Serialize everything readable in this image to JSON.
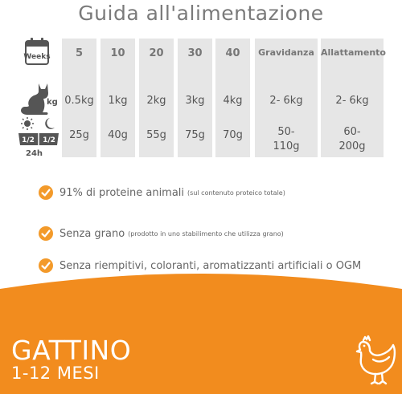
{
  "title": "Guida all'alimentazione",
  "icons": {
    "calendar_label": "Weeks",
    "weight_unit": "kg",
    "portion_half_1": "1/2",
    "portion_half_2": "1/2",
    "portion_period": "24h",
    "calendar_icon": "calendar-icon",
    "cat_icon": "cat-icon",
    "daynight_icon": "sun-moon-icon",
    "chicken_icon": "chicken-icon"
  },
  "columns": [
    {
      "header": "5",
      "weight": "0.5kg",
      "food": "25g"
    },
    {
      "header": "10",
      "weight": "1kg",
      "food": "40g"
    },
    {
      "header": "20",
      "weight": "2kg",
      "food": "55g"
    },
    {
      "header": "30",
      "weight": "3kg",
      "food": "75g"
    },
    {
      "header": "40",
      "weight": "4kg",
      "food": "70g"
    },
    {
      "header": "Gravidanza",
      "weight": "2- 6kg",
      "food_line1": "50-",
      "food_line2": "110g"
    },
    {
      "header": "Allattamento",
      "weight": "2- 6kg",
      "food_line1": "60-",
      "food_line2": "200g"
    }
  ],
  "bullets": [
    {
      "main": "91% di proteine animali",
      "note": "(sul contenuto proteico totale)"
    },
    {
      "main": "Senza grano",
      "note": "(prodotto in uno stabilimento che utilizza grano)"
    },
    {
      "main": "Senza riempitivi, coloranti, aromatizzanti artificiali o OGM",
      "note": ""
    }
  ],
  "banner": {
    "title": "GATTINO",
    "subtitle": "1-12 MESI"
  },
  "colors": {
    "orange": "#f28c1e",
    "check": "#f39a2a",
    "cell_bg": "#e6e6e6"
  }
}
